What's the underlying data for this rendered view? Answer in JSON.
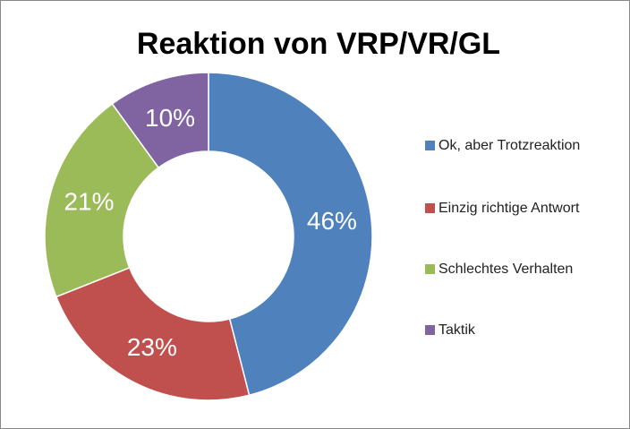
{
  "chart_data": {
    "type": "donut",
    "title": "Reaktion von VRP/VR/GL",
    "categories": [
      "Ok, aber Trotzreaktion",
      "Einzig richtige Antwort",
      "Schlechtes Verhalten",
      "Taktik"
    ],
    "values": [
      46,
      23,
      21,
      10
    ],
    "value_labels": [
      "46%",
      "23%",
      "21%",
      "10%"
    ],
    "colors": [
      "#4f81bd",
      "#c0504d",
      "#9bbb59",
      "#8064a2"
    ],
    "legend": "right"
  }
}
